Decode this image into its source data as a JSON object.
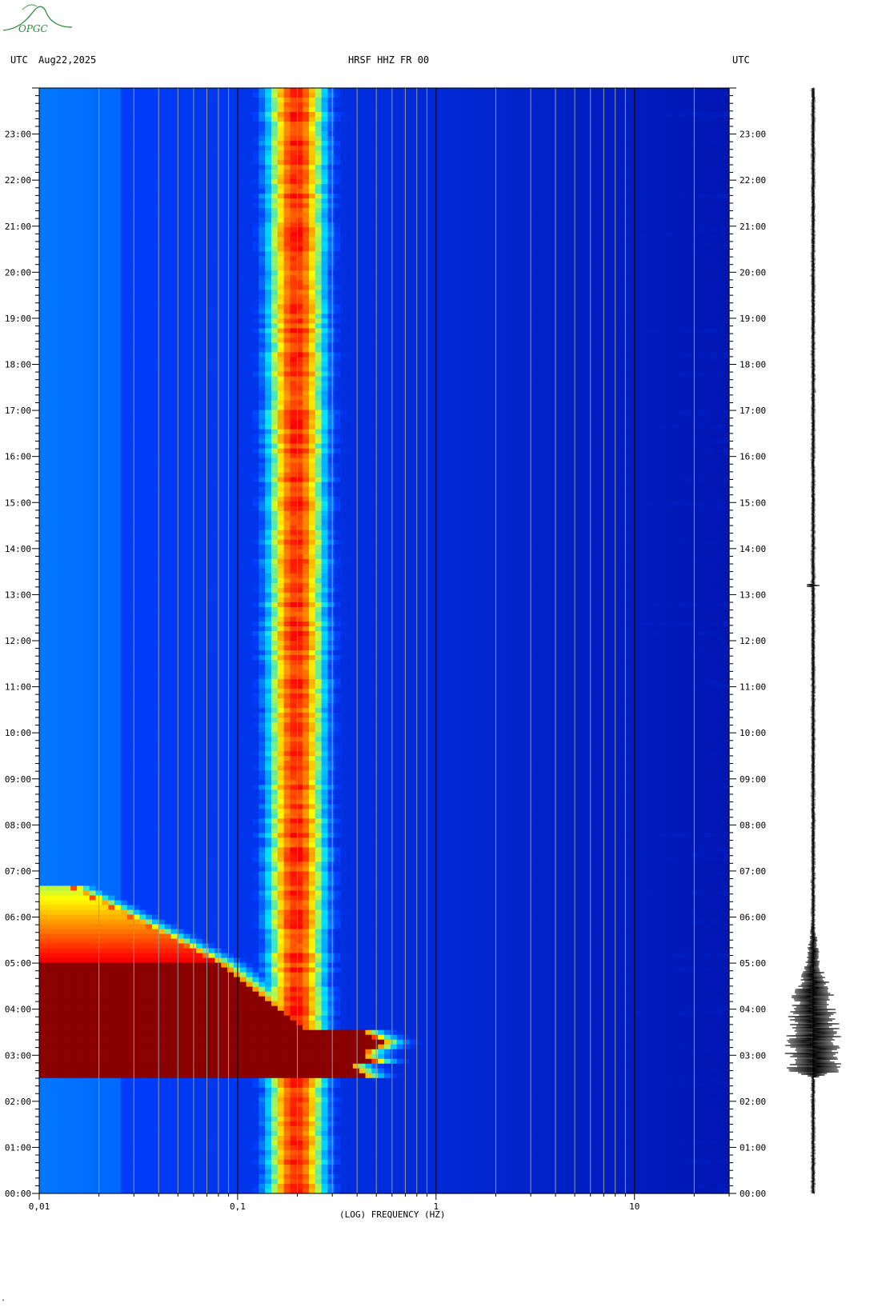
{
  "header": {
    "utc_left": "UTC",
    "date": "Aug22,2025",
    "title": "HRSF HHZ FR 00",
    "utc_right": "UTC"
  },
  "logo": {
    "text": "OPGC",
    "icon": "mountain-logo-icon",
    "color": "#2e8b3a"
  },
  "chart_data": {
    "type": "heatmap",
    "title": "HRSF HHZ FR 00",
    "xlabel": "(LOG) FREQUENCY (HZ)",
    "x_scale": "log",
    "xlim": [
      0.01,
      30
    ],
    "x_ticks": [
      {
        "value": 0.01,
        "label": "0,01"
      },
      {
        "value": 0.1,
        "label": "0,1"
      },
      {
        "value": 1,
        "label": "1"
      },
      {
        "value": 10,
        "label": "10"
      }
    ],
    "y_ticks": [
      "00:00",
      "01:00",
      "02:00",
      "03:00",
      "04:00",
      "05:00",
      "06:00",
      "07:00",
      "08:00",
      "09:00",
      "10:00",
      "11:00",
      "12:00",
      "13:00",
      "14:00",
      "15:00",
      "16:00",
      "17:00",
      "18:00",
      "19:00",
      "20:00",
      "21:00",
      "22:00",
      "23:00"
    ],
    "ylim_hours": [
      0,
      24
    ],
    "ridge_frequency_hz": [
      0.17,
      0.23
    ],
    "event_hours": [
      2.5,
      5.0
    ],
    "colors": {
      "low": "#00008b",
      "mid_low": "#0040ff",
      "cyan": "#00e0ff",
      "yellow": "#ffff00",
      "orange": "#ff8000",
      "red": "#ff0000",
      "saturated": "#8b0000"
    }
  },
  "footer": {
    "corner_mark": "\""
  }
}
